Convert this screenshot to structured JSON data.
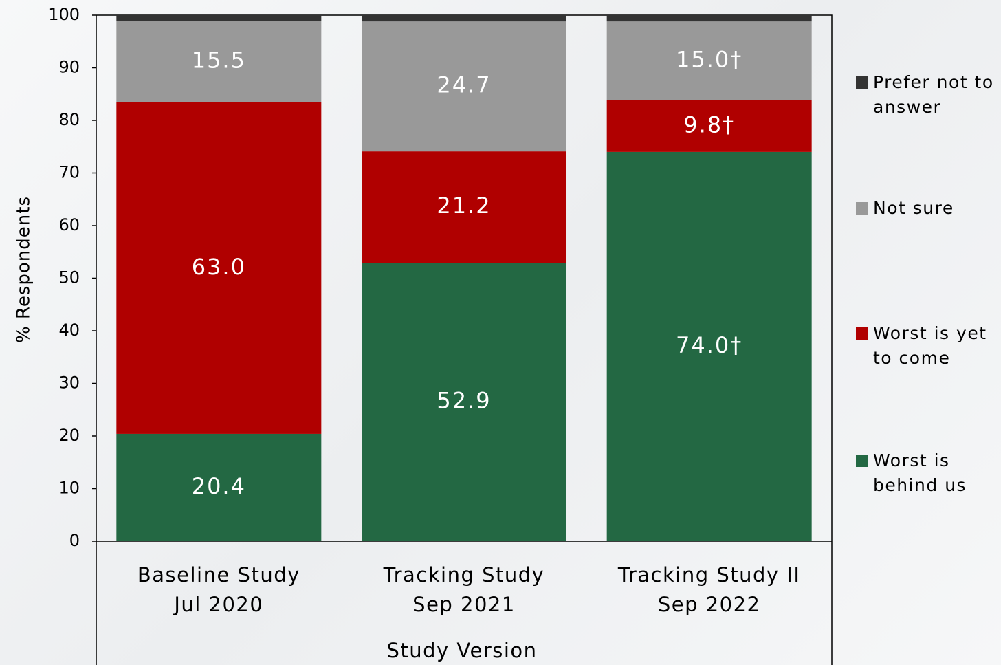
{
  "chart_data": {
    "type": "stacked-bar",
    "x_label": "Study Version",
    "y_label": "% Respondents",
    "categories": [
      [
        "Baseline Study",
        "Jul 2020"
      ],
      [
        "Tracking Study",
        "Sep 2021"
      ],
      [
        "Tracking Study II",
        "Sep 2022"
      ]
    ],
    "series": [
      {
        "name": "Worst is behind us",
        "color": "#236843",
        "values": [
          20.4,
          52.9,
          74.0
        ],
        "value_labels": [
          "20.4",
          "52.9",
          "74.0†"
        ]
      },
      {
        "name": "Worst is yet to come",
        "color": "#b00000",
        "values": [
          63.0,
          21.2,
          9.8
        ],
        "value_labels": [
          "63.0",
          "21.2",
          "9.8†"
        ]
      },
      {
        "name": "Not sure",
        "color": "#999999",
        "values": [
          15.5,
          24.7,
          15.0
        ],
        "value_labels": [
          "15.5",
          "24.7",
          "15.0†"
        ]
      },
      {
        "name": "Prefer not to answer",
        "color": "#333333",
        "values": [
          1.1,
          1.2,
          1.2
        ]
      }
    ],
    "ylim": [
      0,
      100
    ],
    "yticks": [
      0,
      10,
      20,
      30,
      40,
      50,
      60,
      70,
      80,
      90,
      100
    ],
    "legend": "right"
  }
}
